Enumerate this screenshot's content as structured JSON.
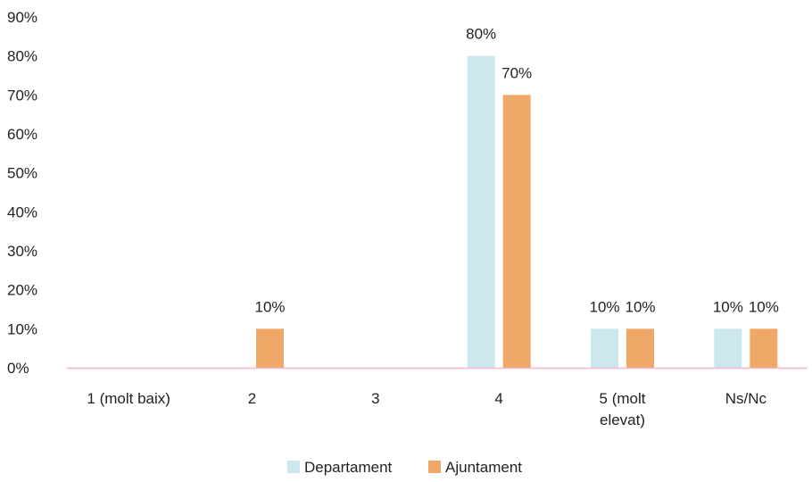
{
  "chart_data": {
    "type": "bar",
    "categories": [
      "1 (molt baix)",
      "2",
      "3",
      "4",
      "5 (molt elevat)",
      "Ns/Nc"
    ],
    "category_lines": [
      [
        "1 (molt baix)"
      ],
      [
        "2"
      ],
      [
        "3"
      ],
      [
        "4"
      ],
      [
        "5 (molt",
        "elevat)"
      ],
      [
        "Ns/Nc"
      ]
    ],
    "series": [
      {
        "name": "Departament",
        "values": [
          0,
          0,
          0,
          80,
          10,
          10
        ],
        "color": "#cce8ee"
      },
      {
        "name": "Ajuntament",
        "values": [
          0,
          10,
          0,
          70,
          10,
          10
        ],
        "color": "#f0a868"
      }
    ],
    "ylim": [
      0,
      90
    ],
    "yticks": [
      0,
      10,
      20,
      30,
      40,
      50,
      60,
      70,
      80,
      90
    ],
    "ytick_labels": [
      "0%",
      "10%",
      "20%",
      "30%",
      "40%",
      "50%",
      "60%",
      "70%",
      "80%",
      "90%"
    ],
    "data_labels": [
      {
        "series": 1,
        "category": 1,
        "text": "10%"
      },
      {
        "series": 0,
        "category": 3,
        "text": "80%"
      },
      {
        "series": 1,
        "category": 3,
        "text": "70%"
      },
      {
        "series": 0,
        "category": 4,
        "text": "10%"
      },
      {
        "series": 1,
        "category": 4,
        "text": "10%"
      },
      {
        "series": 0,
        "category": 5,
        "text": "10%"
      },
      {
        "series": 1,
        "category": 5,
        "text": "10%"
      }
    ],
    "axis_color": "#f2b8d0",
    "grid": false,
    "legend_position": "bottom-center",
    "title": "",
    "xlabel": "",
    "ylabel": ""
  }
}
